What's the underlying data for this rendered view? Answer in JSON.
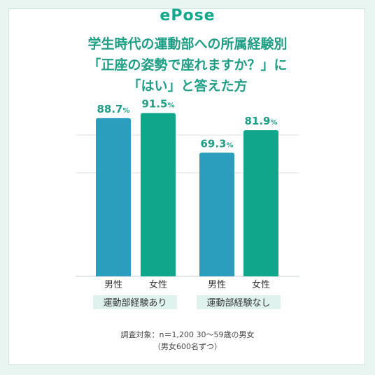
{
  "brand": "ePose",
  "title_lines": [
    "学生時代の運動部への所属経験別",
    "「正座の姿勢で座れますか？」に",
    "「はい」と答えた方"
  ],
  "note_lines": [
    "調査対象：n＝1,200  30〜59歳の男女",
    "（男女600名ずつ）"
  ],
  "colors": {
    "male": "#2a9ebc",
    "female": "#10a68b",
    "accent": "#1f9e86",
    "group_label_bg": "#dff2ee"
  },
  "chart_data": {
    "type": "bar",
    "title": "学生時代の運動部への所属経験別「正座の姿勢で座れますか？」に「はい」と答えた方",
    "groups": [
      "運動部経験あり",
      "運動部経験なし"
    ],
    "categories": [
      "男性",
      "女性"
    ],
    "values": [
      [
        88.7,
        91.5
      ],
      [
        69.3,
        81.9
      ]
    ],
    "value_suffix": "%",
    "ylim": [
      0,
      100
    ],
    "grid": true
  }
}
